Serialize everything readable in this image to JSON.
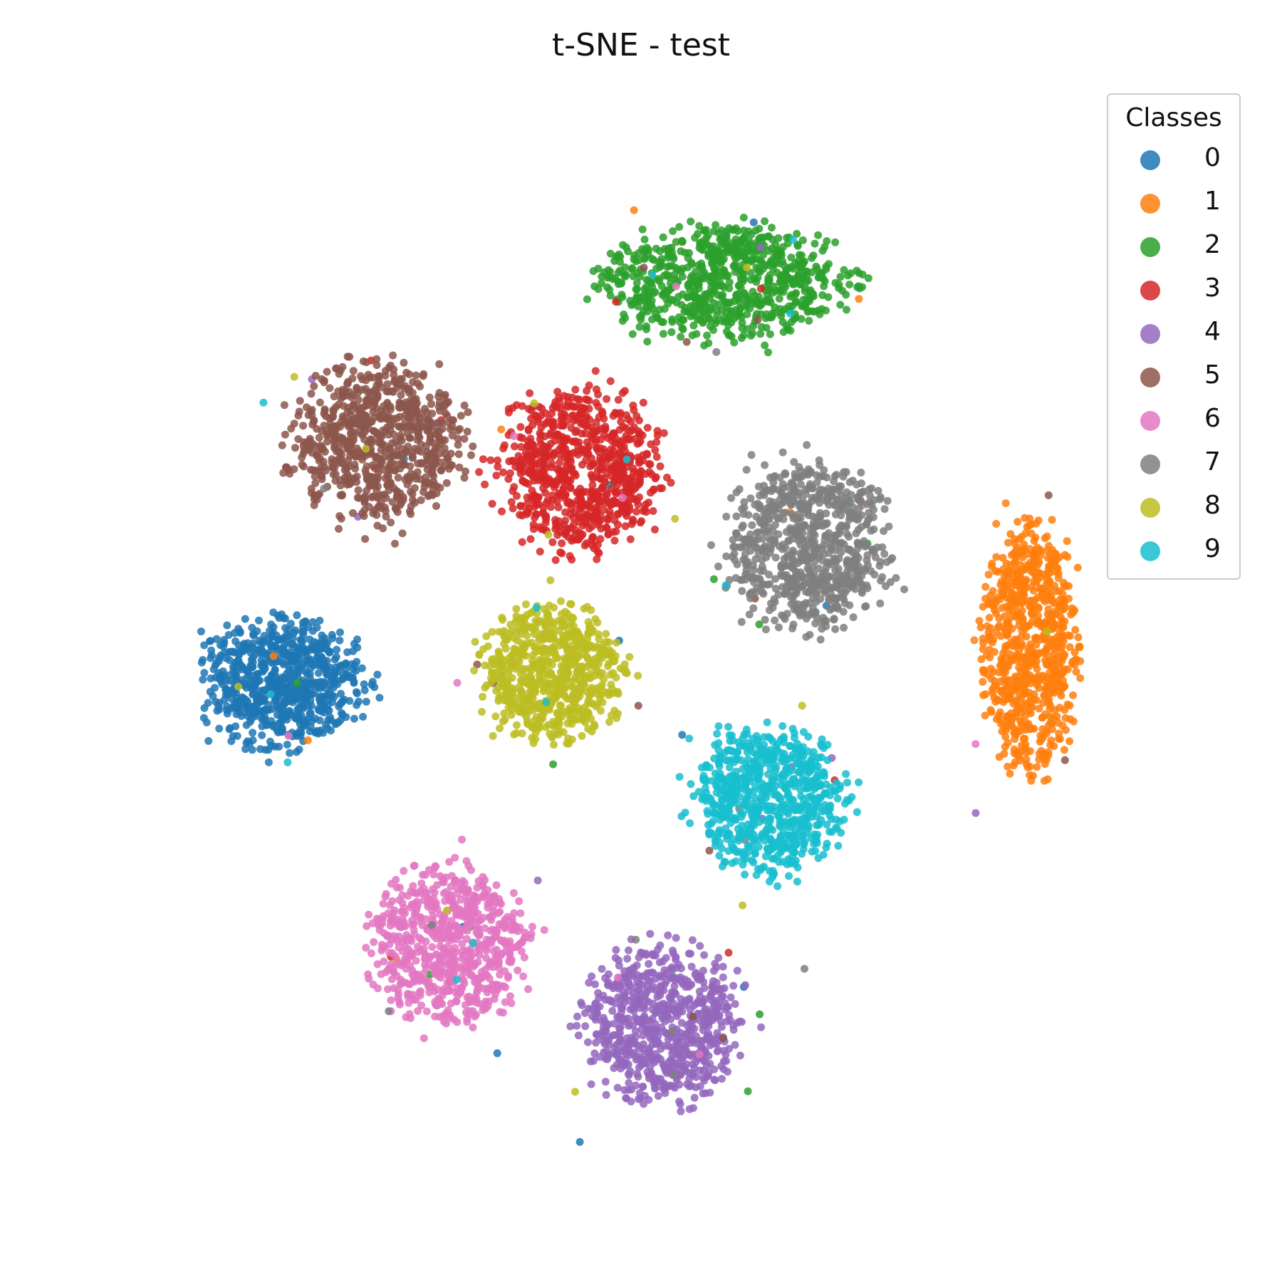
{
  "chart_data": {
    "type": "scatter",
    "title": "t-SNE - test",
    "xlabel": "",
    "ylabel": "",
    "axes_visible": false,
    "grid": false,
    "xlim": [
      -100,
      100
    ],
    "ylim": [
      -100,
      100
    ],
    "legend": {
      "title": "Classes",
      "placement": "top-right"
    },
    "series": [
      {
        "name": "0",
        "color": "#1f77b4",
        "center": [
          -64,
          -2
        ],
        "spread": [
          15,
          12
        ],
        "n": 750
      },
      {
        "name": "1",
        "color": "#ff7f0e",
        "center": [
          68,
          5
        ],
        "spread": [
          9,
          24
        ],
        "n": 760
      },
      {
        "name": "2",
        "color": "#2ca02c",
        "center": [
          14,
          71
        ],
        "spread": [
          23,
          11
        ],
        "n": 770
      },
      {
        "name": "3",
        "color": "#d62728",
        "center": [
          -11,
          37
        ],
        "spread": [
          15,
          15
        ],
        "n": 760
      },
      {
        "name": "4",
        "color": "#9467bd",
        "center": [
          3,
          -64
        ],
        "spread": [
          15,
          15
        ],
        "n": 720
      },
      {
        "name": "5",
        "color": "#8c564b",
        "center": [
          -47,
          42
        ],
        "spread": [
          16,
          15
        ],
        "n": 740
      },
      {
        "name": "6",
        "color": "#e377c2",
        "center": [
          -35,
          -49
        ],
        "spread": [
          15,
          15
        ],
        "n": 700
      },
      {
        "name": "7",
        "color": "#7f7f7f",
        "center": [
          29,
          23
        ],
        "spread": [
          15,
          16
        ],
        "n": 760
      },
      {
        "name": "8",
        "color": "#bcbd22",
        "center": [
          -16,
          0
        ],
        "spread": [
          13,
          13
        ],
        "n": 700
      },
      {
        "name": "9",
        "color": "#17becf",
        "center": [
          22,
          -23
        ],
        "spread": [
          14,
          14
        ],
        "n": 720
      }
    ]
  }
}
